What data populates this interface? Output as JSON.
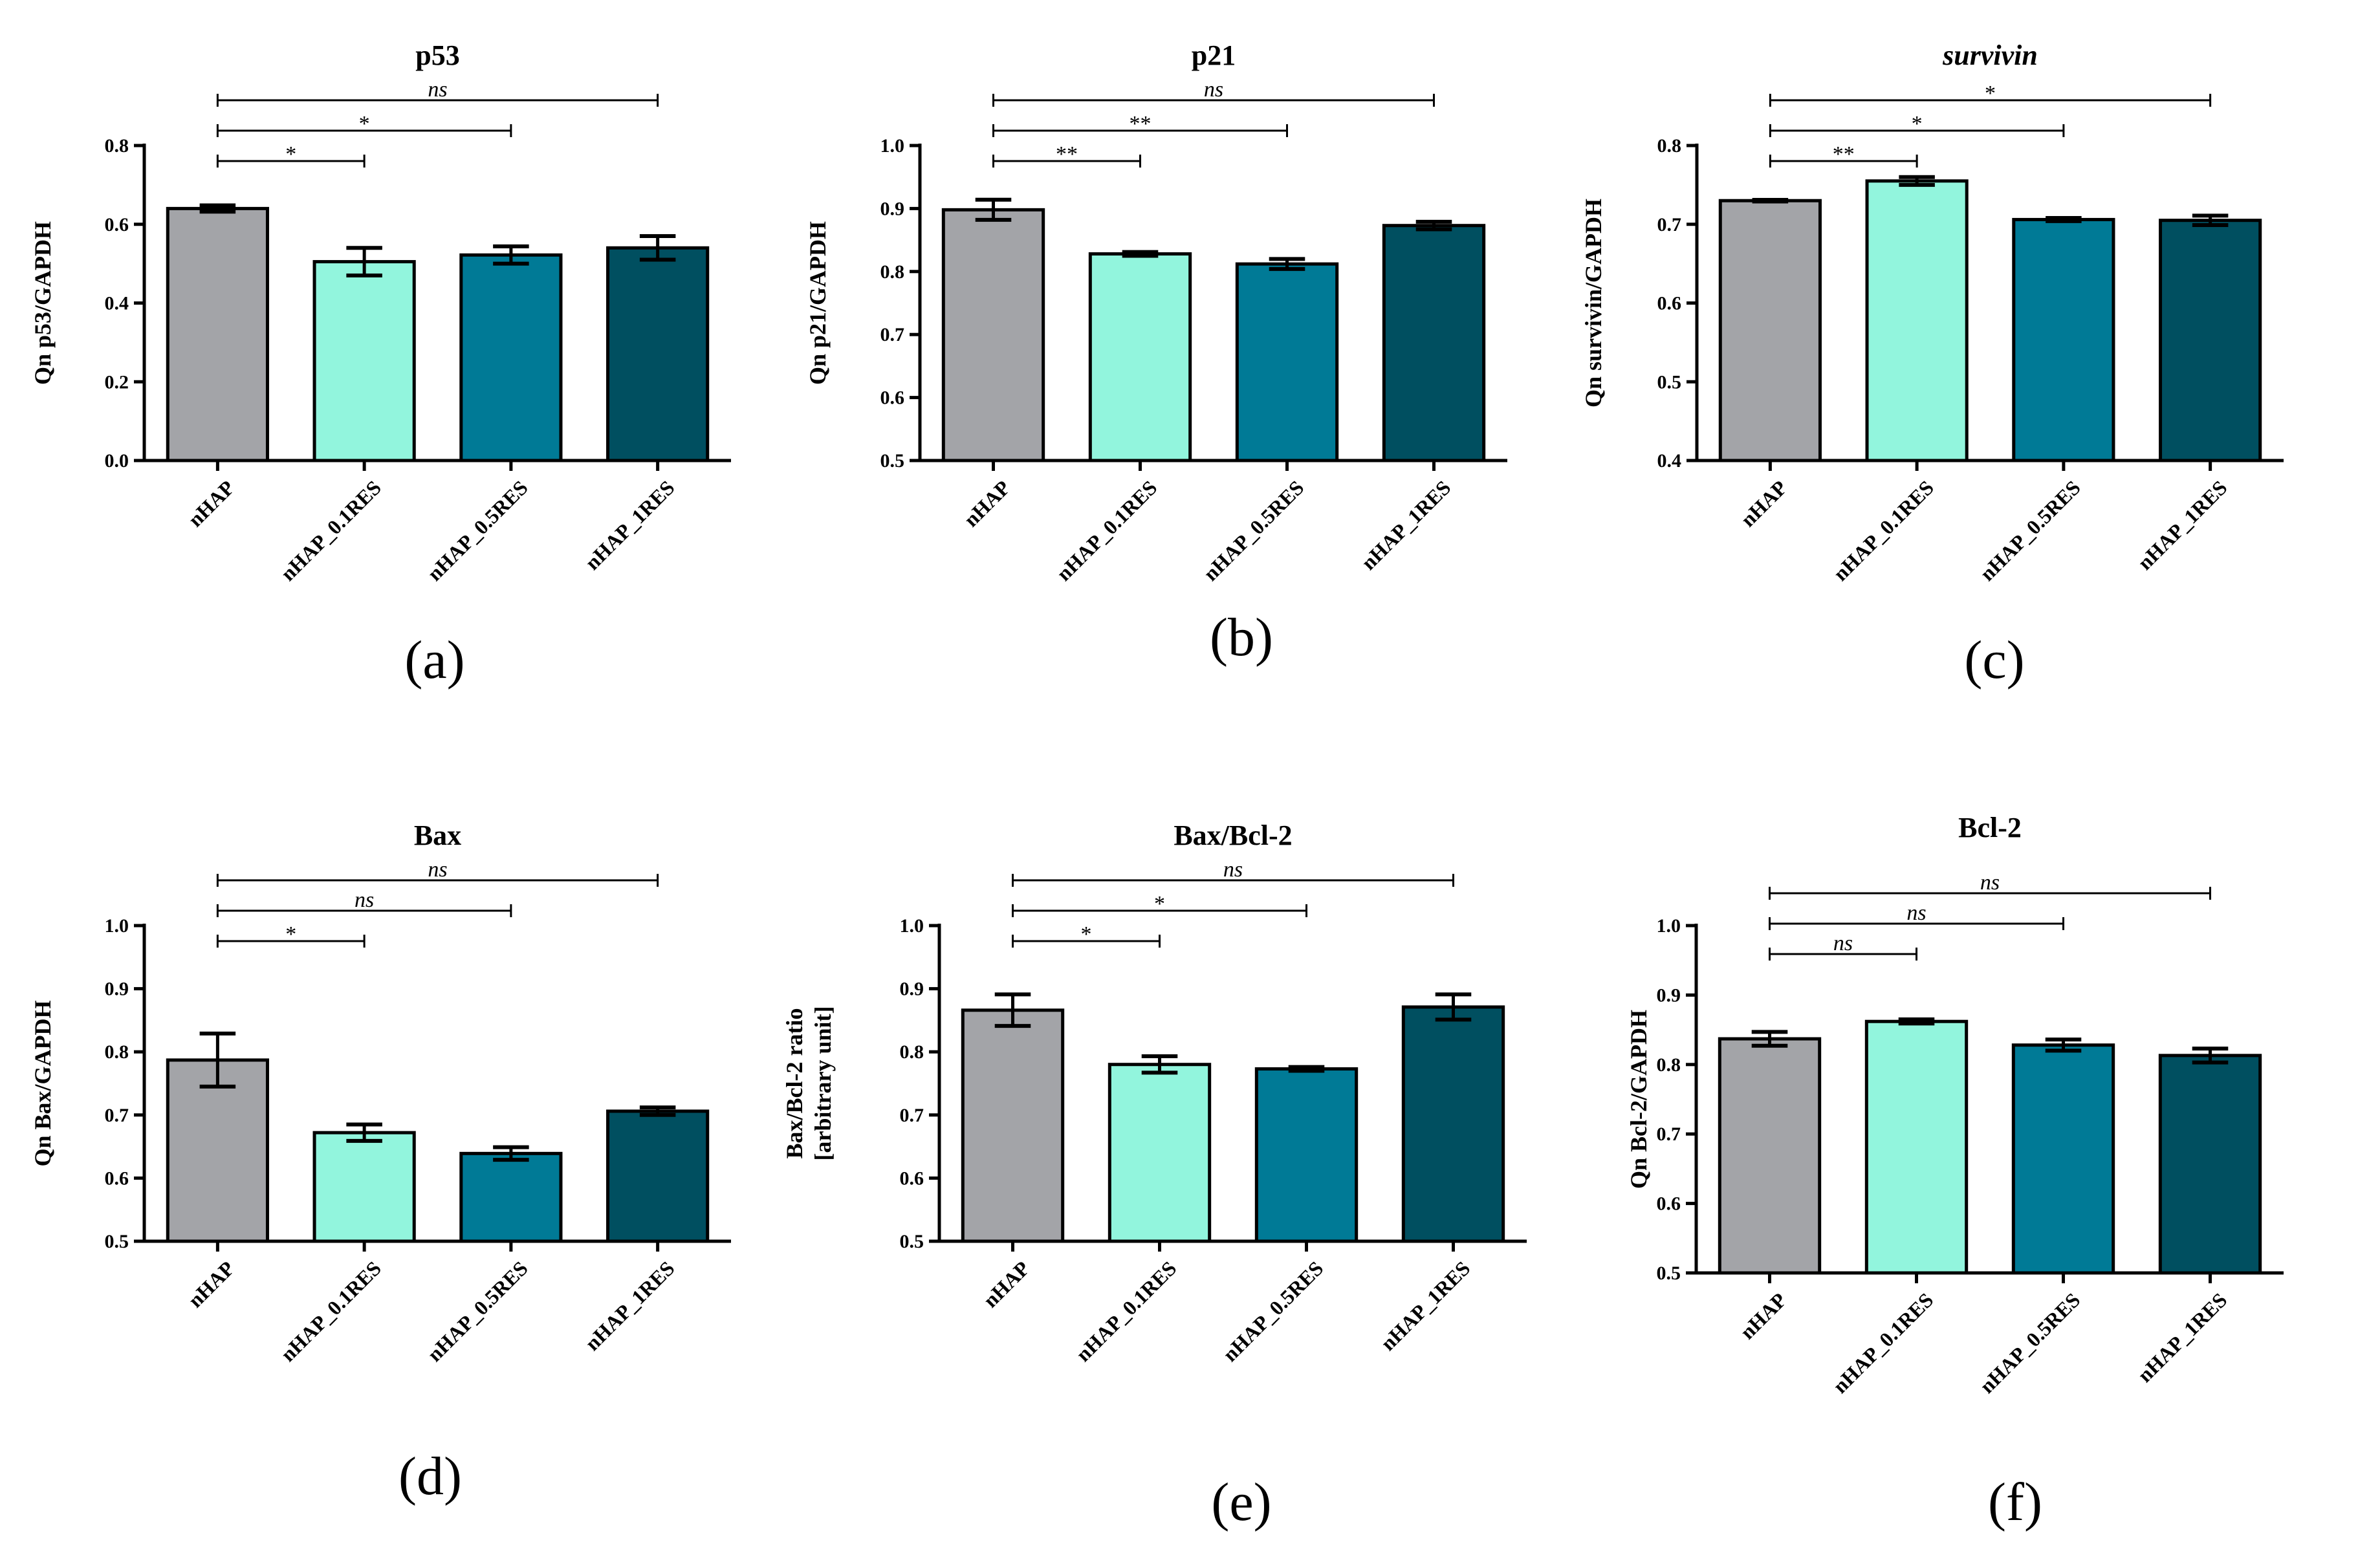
{
  "colors": {
    "nHAP": "#a3a4a8",
    "nHAP_0.1RES": "#92f5dd",
    "nHAP_0.5RES": "#007a96",
    "nHAP_1RES": "#004f60",
    "axis": "#000000"
  },
  "chart_data": [
    {
      "type": "bar",
      "panel_label": "(a)",
      "title": "p53",
      "title_italic": false,
      "ylabel": "Qn p53/GAPDH",
      "ylabel_lines": [
        "Qn p53/GAPDH"
      ],
      "ylim": [
        0.0,
        0.8
      ],
      "yticks": [
        "0.0",
        "0.2",
        "0.4",
        "0.6",
        "0.8"
      ],
      "categories": [
        "nHAP",
        "nHAP_0.1RES",
        "nHAP_0.5RES",
        "nHAP_1RES"
      ],
      "values": [
        0.64,
        0.505,
        0.522,
        0.54
      ],
      "errors": [
        0.008,
        0.035,
        0.022,
        0.03
      ],
      "comparisons": [
        {
          "from": 0,
          "to": 1,
          "label": "*"
        },
        {
          "from": 0,
          "to": 2,
          "label": "*"
        },
        {
          "from": 0,
          "to": 3,
          "label": "ns"
        }
      ]
    },
    {
      "type": "bar",
      "panel_label": "(b)",
      "title": "p21",
      "title_italic": false,
      "ylabel": "Qn p21/GAPDH",
      "ylabel_lines": [
        "Qn p21/GAPDH"
      ],
      "ylim": [
        0.5,
        1.0
      ],
      "yticks": [
        "0.5",
        "0.6",
        "0.7",
        "0.8",
        "0.9",
        "1.0"
      ],
      "categories": [
        "nHAP",
        "nHAP_0.1RES",
        "nHAP_0.5RES",
        "nHAP_1RES"
      ],
      "values": [
        0.898,
        0.828,
        0.812,
        0.873
      ],
      "errors": [
        0.016,
        0.003,
        0.008,
        0.006
      ],
      "comparisons": [
        {
          "from": 0,
          "to": 1,
          "label": "**"
        },
        {
          "from": 0,
          "to": 2,
          "label": "**"
        },
        {
          "from": 0,
          "to": 3,
          "label": "ns"
        }
      ]
    },
    {
      "type": "bar",
      "panel_label": "(c)",
      "title": "survivin",
      "title_italic": true,
      "ylabel": "Qn survivin/GAPDH",
      "ylabel_lines": [
        "Qn survivin/GAPDH"
      ],
      "ylim": [
        0.4,
        0.8
      ],
      "yticks": [
        "0.4",
        "0.5",
        "0.6",
        "0.7",
        "0.8"
      ],
      "categories": [
        "nHAP",
        "nHAP_0.1RES",
        "nHAP_0.5RES",
        "nHAP_1RES"
      ],
      "values": [
        0.73,
        0.755,
        0.706,
        0.705
      ],
      "errors": [
        0.001,
        0.005,
        0.002,
        0.006
      ],
      "comparisons": [
        {
          "from": 0,
          "to": 1,
          "label": "**"
        },
        {
          "from": 0,
          "to": 2,
          "label": "*"
        },
        {
          "from": 0,
          "to": 3,
          "label": "*"
        }
      ]
    },
    {
      "type": "bar",
      "panel_label": "(d)",
      "title": "Bax",
      "title_italic": false,
      "ylabel": "Qn Bax/GAPDH",
      "ylabel_lines": [
        "Qn Bax/GAPDH"
      ],
      "ylim": [
        0.5,
        1.0
      ],
      "yticks": [
        "0.5",
        "0.6",
        "0.7",
        "0.8",
        "0.9",
        "1.0"
      ],
      "categories": [
        "nHAP",
        "nHAP_0.1RES",
        "nHAP_0.5RES",
        "nHAP_1RES"
      ],
      "values": [
        0.787,
        0.672,
        0.639,
        0.706
      ],
      "errors": [
        0.042,
        0.013,
        0.01,
        0.006
      ],
      "comparisons": [
        {
          "from": 0,
          "to": 1,
          "label": "*"
        },
        {
          "from": 0,
          "to": 2,
          "label": "ns"
        },
        {
          "from": 0,
          "to": 3,
          "label": "ns"
        }
      ]
    },
    {
      "type": "bar",
      "panel_label": "(e)",
      "title": "Bax/Bcl-2",
      "title_italic": false,
      "ylabel": "Bax/Bcl-2 ratio [arbitrary unit]",
      "ylabel_lines": [
        "Bax/Bcl-2 ratio",
        "[arbitrary unit]"
      ],
      "ylim": [
        0.5,
        1.0
      ],
      "yticks": [
        "0.5",
        "0.6",
        "0.7",
        "0.8",
        "0.9",
        "1.0"
      ],
      "categories": [
        "nHAP",
        "nHAP_0.1RES",
        "nHAP_0.5RES",
        "nHAP_1RES"
      ],
      "values": [
        0.866,
        0.78,
        0.773,
        0.871
      ],
      "errors": [
        0.025,
        0.013,
        0.003,
        0.02
      ],
      "comparisons": [
        {
          "from": 0,
          "to": 1,
          "label": "*"
        },
        {
          "from": 0,
          "to": 2,
          "label": "*"
        },
        {
          "from": 0,
          "to": 3,
          "label": "ns"
        }
      ]
    },
    {
      "type": "bar",
      "panel_label": "(f)",
      "title": "Bcl-2",
      "title_italic": false,
      "ylabel": "Qn Bcl-2/GAPDH",
      "ylabel_lines": [
        "Qn Bcl-2/GAPDH"
      ],
      "ylim": [
        0.5,
        1.0
      ],
      "yticks": [
        "0.5",
        "0.6",
        "0.7",
        "0.8",
        "0.9",
        "1.0"
      ],
      "categories": [
        "nHAP",
        "nHAP_0.1RES",
        "nHAP_0.5RES",
        "nHAP_1RES"
      ],
      "values": [
        0.837,
        0.862,
        0.828,
        0.813
      ],
      "errors": [
        0.01,
        0.003,
        0.008,
        0.01
      ],
      "comparisons": [
        {
          "from": 0,
          "to": 1,
          "label": "ns"
        },
        {
          "from": 0,
          "to": 2,
          "label": "ns"
        },
        {
          "from": 0,
          "to": 3,
          "label": "ns"
        }
      ]
    }
  ]
}
